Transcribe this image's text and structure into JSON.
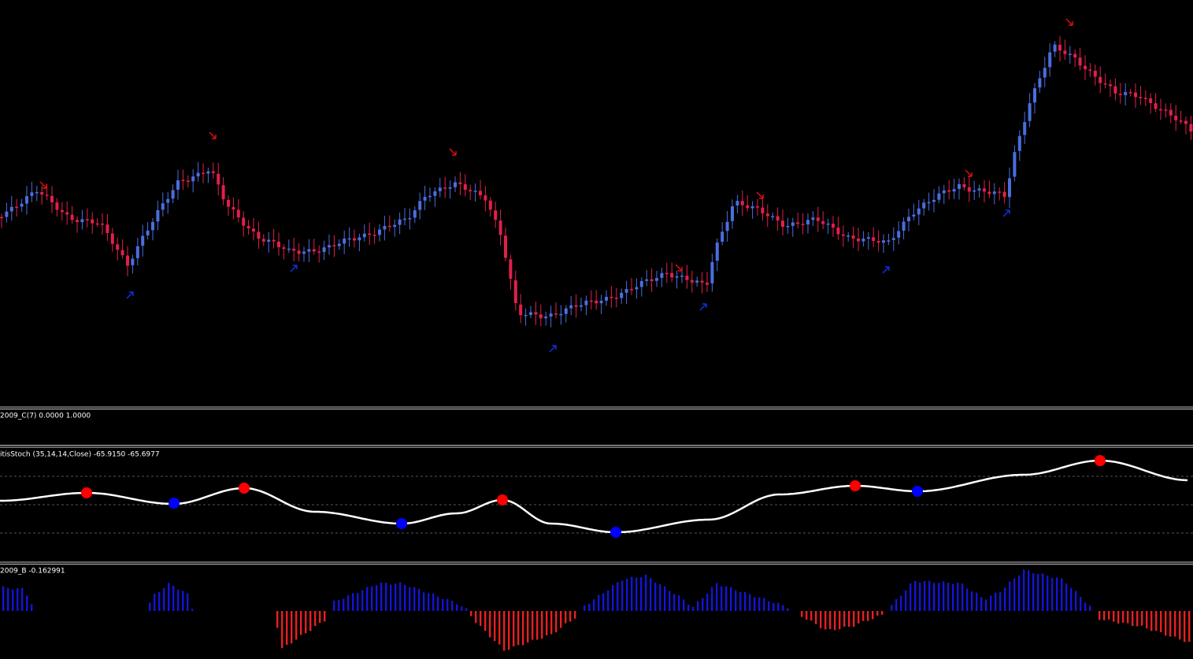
{
  "indicators": [
    {
      "label": "2009_C(7) 0.0000 1.0000"
    },
    {
      "label": "itisStoch (35,14,14,Close) -65.9150 -65.6977"
    },
    {
      "label": "2009_B -0.162991"
    }
  ]
}
